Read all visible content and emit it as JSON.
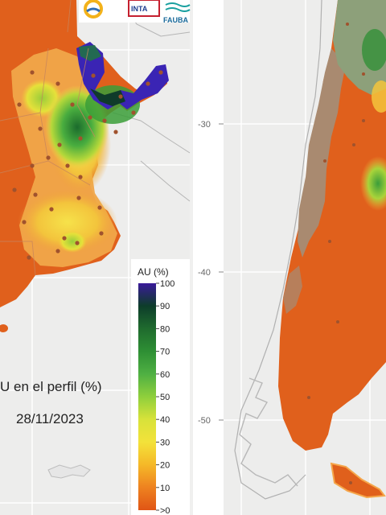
{
  "caption": {
    "line1": "U en el perfil (%)",
    "line2": "28/11/2023"
  },
  "logos": {
    "inta": "INTA",
    "fauba": "FAUBA"
  },
  "legend": {
    "title": "AU (%)",
    "labels": [
      "100",
      "90",
      "80",
      "70",
      "60",
      "50",
      "40",
      "30",
      "20",
      "10",
      ">0"
    ],
    "colors": [
      "#3a1a9a",
      "#0d3d2a",
      "#1f6b2e",
      "#2e8f34",
      "#4fb043",
      "#8fcf3c",
      "#d8e23a",
      "#f3e23a",
      "#f5b828",
      "#ee8220",
      "#e05515"
    ]
  },
  "latitude_ticks": [
    "-30",
    "-40",
    "-50"
  ],
  "colors": {
    "dry": "#e0601c",
    "medium": "#f3a24a",
    "wet": "#5fb94a",
    "saturated": "#3a24b4",
    "brown_zone": "#a98a70",
    "panel": "#ededec"
  }
}
